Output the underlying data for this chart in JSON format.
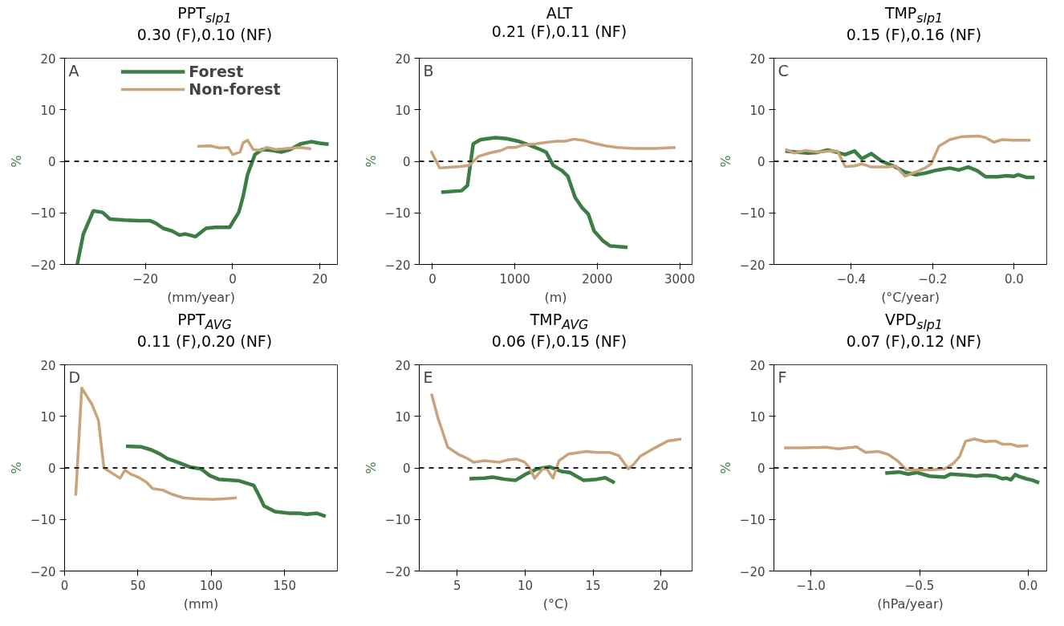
{
  "chart_data": [
    {
      "type": "line",
      "title": "PPT$_{slp1}$",
      "subtitle": "0.30 (F),0.10 (NF)",
      "xlabel": "(mm/year)",
      "ylabel": "%",
      "annotations": [
        "A"
      ],
      "legend": "top",
      "grid": false,
      "line_style": "solid",
      "xlim": [
        -38.5,
        24
      ],
      "xticks": [
        -20,
        0,
        20
      ],
      "ylim": [
        -20,
        20
      ],
      "yticks": [
        -20,
        -10,
        0,
        10,
        20
      ],
      "ref_lines": [
        {
          "axis": "y",
          "value": 0,
          "color": "#222222",
          "line_style": "dashed"
        }
      ],
      "series": [
        {
          "name": "Forest",
          "color": "#3b7d45",
          "x": [
            -35.6,
            -34.2,
            -31.9,
            -29.8,
            -28.1,
            -24.7,
            -21.4,
            -19,
            -17.6,
            -15.9,
            -13.9,
            -12.2,
            -10.8,
            -8.5,
            -6.1,
            -4.1,
            -0.7,
            1.4,
            2.4,
            3.4,
            5.1,
            6.8,
            9.2,
            11.2,
            13.2,
            15.6,
            18,
            20,
            22
          ],
          "values": [
            -20,
            -14.1,
            -9.6,
            -9.9,
            -11.2,
            -11.4,
            -11.5,
            -11.5,
            -12,
            -13,
            -13.5,
            -14.3,
            -14.1,
            -14.6,
            -13,
            -12.8,
            -12.8,
            -9.9,
            -6.8,
            -2.6,
            1.3,
            2.3,
            2.1,
            1.8,
            2.3,
            3.4,
            3.8,
            3.5,
            3.3
          ]
        },
        {
          "name": "Non-forest",
          "color": "#c9a37a",
          "x": [
            -8.1,
            -5.1,
            -3.1,
            -1,
            0,
            1.7,
            2.4,
            3.4,
            4.7,
            6.4,
            7.8,
            9.8,
            12.5,
            15.6,
            18
          ],
          "values": [
            2.9,
            3,
            2.6,
            2.7,
            1.3,
            1.8,
            3.6,
            4.1,
            2.3,
            2.1,
            2.7,
            2.3,
            2.5,
            2.7,
            2.4
          ]
        }
      ]
    },
    {
      "type": "line",
      "title": "ALT",
      "subtitle": "0.21 (F),0.11 (NF)",
      "xlabel": "(m)",
      "ylabel": "%",
      "annotations": [
        "B"
      ],
      "grid": false,
      "line_style": "solid",
      "xlim": [
        -160,
        3150
      ],
      "xticks": [
        0,
        1000,
        2000,
        3000
      ],
      "ylim": [
        -20,
        20
      ],
      "yticks": [
        -20,
        -10,
        0,
        10,
        20
      ],
      "ref_lines": [
        {
          "axis": "y",
          "value": 0,
          "color": "#222222",
          "line_style": "dashed"
        }
      ],
      "series": [
        {
          "color": "#3b7d45",
          "x": [
            106,
            353,
            424,
            495,
            583,
            760,
            901,
            1042,
            1184,
            1307,
            1378,
            1466,
            1572,
            1643,
            1731,
            1820,
            1890,
            1961,
            2067,
            2155,
            2367
          ],
          "values": [
            -6,
            -5.7,
            -4.7,
            3.4,
            4.2,
            4.6,
            4.4,
            3.9,
            3.1,
            2.3,
            1.8,
            -0.8,
            -1.8,
            -2.9,
            -7,
            -9.1,
            -10.2,
            -13.5,
            -15.4,
            -16.4,
            -16.7
          ]
        },
        {
          "color": "#c9a37a",
          "x": [
            -18,
            88,
            336,
            442,
            565,
            689,
            830,
            919,
            1007,
            1113,
            1254,
            1396,
            1502,
            1608,
            1714,
            1820,
            1961,
            2102,
            2244,
            2438,
            2700,
            2950
          ],
          "values": [
            2,
            -1.3,
            -1,
            -0.8,
            1,
            1.6,
            2.1,
            2.7,
            2.7,
            3.2,
            3.4,
            3.7,
            3.9,
            3.9,
            4.3,
            4.1,
            3.5,
            3,
            2.7,
            2.5,
            2.5,
            2.7
          ]
        }
      ]
    },
    {
      "type": "line",
      "title": "TMP$_{slp1}$",
      "subtitle": "0.15 (F),0.16 (NF)",
      "xlabel": "(°C/year)",
      "ylabel": "%",
      "annotations": [
        "C"
      ],
      "grid": false,
      "line_style": "solid",
      "xlim": [
        -0.59,
        0.08
      ],
      "xticks": [
        {
          "value": -0.4,
          "label": "−0.4"
        },
        {
          "value": -0.2,
          "label": "−0.2"
        },
        {
          "value": 0,
          "label": "0.0"
        }
      ],
      "ylim": [
        -20,
        20
      ],
      "yticks": [
        -20,
        -10,
        0,
        10,
        20
      ],
      "ref_lines": [
        {
          "axis": "y",
          "value": 0,
          "color": "#222222",
          "line_style": "dashed"
        }
      ],
      "series": [
        {
          "color": "#3b7d45",
          "x": [
            -0.562,
            -0.536,
            -0.506,
            -0.485,
            -0.458,
            -0.438,
            -0.415,
            -0.392,
            -0.374,
            -0.351,
            -0.325,
            -0.294,
            -0.268,
            -0.242,
            -0.219,
            -0.189,
            -0.158,
            -0.136,
            -0.113,
            -0.091,
            -0.07,
            -0.04,
            -0.02,
            0,
            0.01,
            0.03,
            0.05
          ],
          "values": [
            2,
            1.8,
            1.6,
            1.7,
            2.2,
            1.8,
            1.3,
            2,
            0.5,
            1.5,
            0,
            -1,
            -2.1,
            -2.6,
            -2.3,
            -1.7,
            -1.3,
            -1.7,
            -1.1,
            -1.8,
            -3,
            -3,
            -2.8,
            -2.9,
            -2.6,
            -3.1,
            -3.1
          ]
        },
        {
          "color": "#c9a37a",
          "x": [
            -0.562,
            -0.54,
            -0.513,
            -0.483,
            -0.453,
            -0.434,
            -0.415,
            -0.392,
            -0.374,
            -0.351,
            -0.309,
            -0.291,
            -0.268,
            -0.242,
            -0.219,
            -0.204,
            -0.185,
            -0.158,
            -0.128,
            -0.087,
            -0.07,
            -0.05,
            -0.03,
            0,
            0.04
          ],
          "values": [
            2.3,
            1.6,
            2.1,
            1.8,
            2,
            2,
            -1,
            -0.9,
            -0.5,
            -1.1,
            -1.1,
            -0.9,
            -2.9,
            -2.1,
            -1.3,
            -0.5,
            2.9,
            4.2,
            4.8,
            4.9,
            4.6,
            3.7,
            4.2,
            4.1,
            4.1
          ]
        }
      ]
    },
    {
      "type": "line",
      "title": "PPT$_{AVG}$",
      "subtitle": "0.11 (F),0.20 (NF)",
      "xlabel": "(mm)",
      "ylabel": "%",
      "annotations": [
        "D"
      ],
      "grid": false,
      "line_style": "solid",
      "xlim": [
        0,
        186
      ],
      "xticks": [
        0,
        50,
        100,
        150
      ],
      "ylim": [
        -20,
        20
      ],
      "yticks": [
        -20,
        -10,
        0,
        10,
        20
      ],
      "ref_lines": [
        {
          "axis": "y",
          "value": 0,
          "color": "#222222",
          "line_style": "dashed"
        }
      ],
      "series": [
        {
          "color": "#3b7d45",
          "x": [
            41.9,
            52,
            59,
            65,
            70,
            77,
            85,
            93,
            99,
            105,
            119,
            129,
            133,
            136,
            143.5,
            153.5,
            160,
            165,
            172,
            178
          ],
          "values": [
            4.2,
            4.1,
            3.5,
            2.7,
            1.8,
            1.1,
            0.2,
            -0.2,
            -1.5,
            -2.2,
            -2.5,
            -3.4,
            -5.6,
            -7.4,
            -8.5,
            -8.8,
            -8.8,
            -9,
            -8.8,
            -9.4
          ]
        },
        {
          "color": "#c9a37a",
          "x": [
            7.6,
            11.7,
            18.7,
            23.1,
            26.8,
            37.8,
            41.2,
            44.9,
            50.9,
            55.9,
            60,
            67,
            73,
            81,
            89,
            101,
            109,
            117.3
          ],
          "values": [
            -5.4,
            15.5,
            12.3,
            9.2,
            0,
            -2,
            -0.4,
            -1.2,
            -1.9,
            -2.8,
            -4,
            -4.3,
            -5.1,
            -5.8,
            -6,
            -6.1,
            -6,
            -5.8
          ]
        }
      ]
    },
    {
      "type": "line",
      "title": "TMP$_{AVG}$",
      "subtitle": "0.06 (F),0.15 (NF)",
      "xlabel": "(°C)",
      "ylabel": "%",
      "annotations": [
        "E"
      ],
      "grid": false,
      "line_style": "solid",
      "xlim": [
        2.2,
        22.3
      ],
      "xticks": [
        5,
        10,
        15,
        20
      ],
      "ylim": [
        -20,
        20
      ],
      "yticks": [
        -20,
        -10,
        0,
        10,
        20
      ],
      "ref_lines": [
        {
          "axis": "y",
          "value": 0,
          "color": "#222222",
          "line_style": "dashed"
        }
      ],
      "series": [
        {
          "color": "#3b7d45",
          "x": [
            5.9,
            7,
            7.6,
            8.5,
            9.3,
            10.05,
            10.9,
            11.8,
            12.7,
            13.3,
            14.3,
            15.3,
            15.9,
            16.6
          ],
          "values": [
            -2.1,
            -2,
            -1.8,
            -2.2,
            -2.4,
            -1.2,
            -0.2,
            0.2,
            -0.7,
            -0.9,
            -2.4,
            -2.2,
            -1.9,
            -2.9
          ]
        },
        {
          "color": "#c9a37a",
          "x": [
            3.1,
            3.6,
            4.3,
            5.1,
            5.7,
            6.2,
            7,
            8.1,
            8.8,
            9.4,
            9.96,
            10.3,
            10.7,
            11.3,
            11.6,
            12.05,
            12.5,
            13.2,
            14.5,
            15.3,
            16.2,
            16.9,
            17.6,
            18,
            18.5,
            19.5,
            20.5,
            21.5
          ],
          "values": [
            14.4,
            9.5,
            4,
            2.6,
            1.9,
            1.1,
            1.4,
            1.1,
            1.6,
            1.7,
            1.1,
            0.1,
            -2,
            -0.2,
            -0.2,
            -2,
            1.4,
            2.7,
            3.2,
            3,
            3,
            2.4,
            -0.2,
            0.7,
            2.3,
            3.8,
            5.2,
            5.6
          ]
        }
      ]
    },
    {
      "type": "line",
      "title": "VPD$_{slp1}$",
      "subtitle": "0.07 (F),0.12 (NF)",
      "xlabel": "(hPa/year)",
      "ylabel": "%",
      "annotations": [
        "F"
      ],
      "grid": false,
      "line_style": "solid",
      "xlim": [
        -1.17,
        0.085
      ],
      "xticks": [
        {
          "value": -1,
          "label": "−1.0"
        },
        {
          "value": -0.5,
          "label": "−0.5"
        },
        {
          "value": 0,
          "label": "0.0"
        }
      ],
      "ylim": [
        -20,
        20
      ],
      "yticks": [
        -20,
        -10,
        0,
        10,
        20
      ],
      "ref_lines": [
        {
          "axis": "y",
          "value": 0,
          "color": "#222222",
          "line_style": "dashed"
        }
      ],
      "series": [
        {
          "color": "#3b7d45",
          "x": [
            -0.658,
            -0.595,
            -0.553,
            -0.511,
            -0.455,
            -0.385,
            -0.358,
            -0.288,
            -0.239,
            -0.2,
            -0.15,
            -0.12,
            -0.1,
            -0.08,
            -0.06,
            -0.04,
            -0.01,
            0.02,
            0.05
          ],
          "values": [
            -1,
            -0.8,
            -1.2,
            -0.9,
            -1.6,
            -1.8,
            -1.2,
            -1.4,
            -1.6,
            -1.4,
            -1.6,
            -2.1,
            -2,
            -2.3,
            -1.3,
            -1.7,
            -2.1,
            -2.4,
            -2.9
          ]
        },
        {
          "color": "#c9a37a",
          "x": [
            -1.123,
            -1.028,
            -0.93,
            -0.874,
            -0.79,
            -0.748,
            -0.693,
            -0.644,
            -0.602,
            -0.56,
            -0.511,
            -0.455,
            -0.385,
            -0.344,
            -0.316,
            -0.288,
            -0.246,
            -0.2,
            -0.15,
            -0.12,
            -0.08,
            -0.05,
            0
          ],
          "values": [
            3.9,
            3.9,
            4,
            3.7,
            4.1,
            3,
            3.2,
            2.6,
            1.4,
            -0.4,
            -0.4,
            -0.4,
            -0.2,
            0.9,
            2.2,
            5.2,
            5.6,
            5.1,
            5.2,
            4.6,
            4.6,
            4.2,
            4.3
          ]
        }
      ]
    }
  ]
}
